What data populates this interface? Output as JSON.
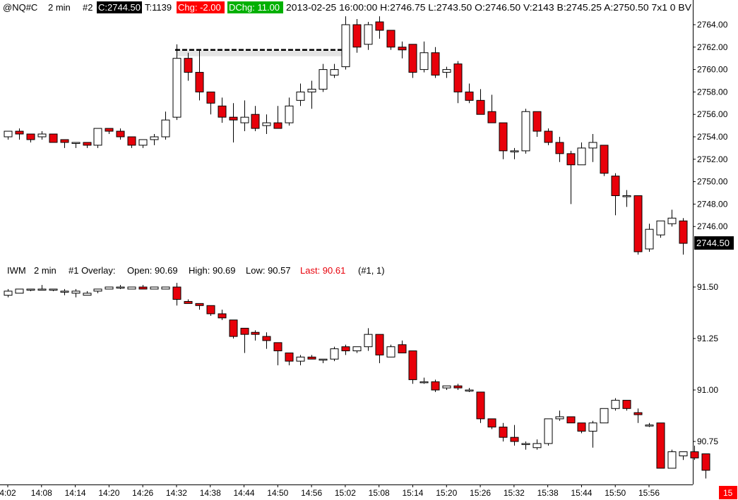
{
  "header": {
    "symbol": "@NQ#C",
    "interval": "2 min",
    "study_num": "#2",
    "close_label": "C:2744.50",
    "ticks_label": "T:1139",
    "chg_label": "Chg: -2.00",
    "dchg_label": "DChg: 11.00",
    "info": "2013-02-25 16:00:00 H:2746.75 L:2743.50 O:2746.50 V:2143 B:2745.25 A:2750.50 7x1 0 BV"
  },
  "overlay_header": {
    "symbol": "IWM",
    "interval": "2 min",
    "overlay_label": "#1 Overlay:",
    "open_label": "Open: 90.69",
    "high_label": "High: 90.69",
    "low_label": "Low: 90.57",
    "last_label": "Last: 90.61",
    "suffix": "(#1, 1)"
  },
  "colors": {
    "up": "#ffffff",
    "down": "#e8000a",
    "chg_bg": "#ff0000",
    "dchg_bg": "#00b000",
    "close_bg": "#000000",
    "last_text": "#e8000a"
  },
  "price_badge": "2744.50",
  "corner_badge": "15",
  "chart_data": [
    {
      "type": "candlestick",
      "name": "@NQ#C",
      "x_ticks": [
        "4:02",
        "14:08",
        "14:14",
        "14:20",
        "14:26",
        "14:32",
        "14:38",
        "14:44",
        "14:50",
        "14:56",
        "15:02",
        "15:08",
        "15:14",
        "15:20",
        "15:26",
        "15:32",
        "15:38",
        "15:44",
        "15:50",
        "15:56"
      ],
      "y_ticks": [
        "2764.00",
        "2762.00",
        "2760.00",
        "2758.00",
        "2756.00",
        "2754.00",
        "2752.00",
        "2750.00",
        "2748.00",
        "2746.00"
      ],
      "ylim": [
        2743.0,
        2765.0
      ],
      "reference_line": 2761.75,
      "last_price": 2744.5,
      "ohlc": [
        [
          2754.0,
          2754.5,
          2753.75,
          2754.5
        ],
        [
          2754.5,
          2754.75,
          2753.75,
          2754.25
        ],
        [
          2754.25,
          2754.25,
          2753.5,
          2753.75
        ],
        [
          2754.0,
          2754.5,
          2753.75,
          2754.25
        ],
        [
          2754.25,
          2754.25,
          2753.5,
          2753.5
        ],
        [
          2753.75,
          2753.75,
          2753.0,
          2753.5
        ],
        [
          2753.5,
          2753.5,
          2753.0,
          2753.5
        ],
        [
          2753.5,
          2753.5,
          2753.0,
          2753.25
        ],
        [
          2753.25,
          2754.75,
          2753.0,
          2754.75
        ],
        [
          2754.75,
          2754.75,
          2754.25,
          2754.5
        ],
        [
          2754.5,
          2754.75,
          2753.75,
          2754.0
        ],
        [
          2754.0,
          2754.0,
          2753.0,
          2753.25
        ],
        [
          2753.25,
          2753.75,
          2753.0,
          2753.75
        ],
        [
          2753.75,
          2754.25,
          2753.25,
          2754.0
        ],
        [
          2754.0,
          2756.25,
          2753.75,
          2755.5
        ],
        [
          2755.75,
          2762.25,
          2755.5,
          2761.0
        ],
        [
          2761.0,
          2761.5,
          2759.0,
          2759.75
        ],
        [
          2759.75,
          2761.75,
          2757.25,
          2758.0
        ],
        [
          2758.0,
          2758.0,
          2756.0,
          2757.0
        ],
        [
          2756.75,
          2757.5,
          2755.25,
          2755.75
        ],
        [
          2755.75,
          2757.0,
          2753.5,
          2755.5
        ],
        [
          2755.25,
          2757.25,
          2754.5,
          2755.75
        ],
        [
          2756.0,
          2756.75,
          2754.5,
          2754.75
        ],
        [
          2755.0,
          2756.0,
          2754.25,
          2755.25
        ],
        [
          2755.25,
          2756.75,
          2754.75,
          2754.75
        ],
        [
          2755.25,
          2757.5,
          2755.0,
          2756.75
        ],
        [
          2757.25,
          2758.75,
          2756.75,
          2758.0
        ],
        [
          2758.0,
          2759.0,
          2756.5,
          2758.25
        ],
        [
          2758.25,
          2760.5,
          2758.0,
          2760.0
        ],
        [
          2759.5,
          2760.5,
          2759.25,
          2760.0
        ],
        [
          2760.25,
          2764.75,
          2760.0,
          2764.0
        ],
        [
          2764.0,
          2764.5,
          2761.5,
          2762.0
        ],
        [
          2762.25,
          2764.25,
          2761.75,
          2764.0
        ],
        [
          2764.25,
          2764.75,
          2762.75,
          2763.5
        ],
        [
          2763.5,
          2763.5,
          2761.75,
          2762.0
        ],
        [
          2762.0,
          2762.5,
          2761.0,
          2761.75
        ],
        [
          2762.25,
          2762.25,
          2759.25,
          2759.75
        ],
        [
          2760.0,
          2762.5,
          2759.75,
          2761.5
        ],
        [
          2761.5,
          2762.0,
          2759.25,
          2759.5
        ],
        [
          2759.75,
          2760.25,
          2759.25,
          2760.0
        ],
        [
          2760.5,
          2760.75,
          2757.0,
          2758.0
        ],
        [
          2758.0,
          2758.75,
          2757.0,
          2757.25
        ],
        [
          2757.25,
          2758.25,
          2756.0,
          2756.0
        ],
        [
          2756.25,
          2757.75,
          2755.25,
          2755.25
        ],
        [
          2755.25,
          2755.25,
          2752.0,
          2752.75
        ],
        [
          2752.75,
          2753.0,
          2752.0,
          2752.75
        ],
        [
          2752.75,
          2756.5,
          2752.5,
          2756.25
        ],
        [
          2756.25,
          2756.25,
          2754.0,
          2754.5
        ],
        [
          2754.5,
          2754.75,
          2753.25,
          2753.5
        ],
        [
          2753.5,
          2754.0,
          2751.75,
          2752.5
        ],
        [
          2752.5,
          2752.75,
          2748.0,
          2751.5
        ],
        [
          2751.5,
          2753.5,
          2751.5,
          2753.0
        ],
        [
          2753.0,
          2754.25,
          2751.75,
          2753.5
        ],
        [
          2753.25,
          2753.25,
          2750.5,
          2750.75
        ],
        [
          2750.5,
          2750.75,
          2747.0,
          2748.75
        ],
        [
          2748.75,
          2749.25,
          2747.75,
          2748.75
        ],
        [
          2748.75,
          2748.75,
          2743.5,
          2743.75
        ],
        [
          2744.0,
          2746.25,
          2743.75,
          2745.75
        ],
        [
          2745.25,
          2746.5,
          2745.0,
          2746.5
        ],
        [
          2746.25,
          2747.5,
          2746.0,
          2746.75
        ],
        [
          2746.5,
          2746.75,
          2743.5,
          2744.5
        ]
      ]
    },
    {
      "type": "candlestick",
      "name": "IWM",
      "y_ticks": [
        "91.50",
        "91.25",
        "91.00",
        "90.75"
      ],
      "ylim": [
        90.56,
        91.55
      ],
      "ohlc": [
        [
          91.46,
          91.49,
          91.45,
          91.48
        ],
        [
          91.47,
          91.49,
          91.47,
          91.49
        ],
        [
          91.49,
          91.49,
          91.48,
          91.49
        ],
        [
          91.49,
          91.51,
          91.49,
          91.49
        ],
        [
          91.49,
          91.49,
          91.48,
          91.49
        ],
        [
          91.48,
          91.49,
          91.46,
          91.48
        ],
        [
          91.47,
          91.49,
          91.45,
          91.48
        ],
        [
          91.46,
          91.48,
          91.46,
          91.47
        ],
        [
          91.48,
          91.49,
          91.47,
          91.49
        ],
        [
          91.49,
          91.5,
          91.49,
          91.5
        ],
        [
          91.5,
          91.51,
          91.49,
          91.5
        ],
        [
          91.49,
          91.5,
          91.49,
          91.5
        ],
        [
          91.5,
          91.51,
          91.49,
          91.49
        ],
        [
          91.49,
          91.5,
          91.49,
          91.5
        ],
        [
          91.49,
          91.5,
          91.49,
          91.5
        ],
        [
          91.5,
          91.52,
          91.41,
          91.44
        ],
        [
          91.43,
          91.44,
          91.42,
          91.42
        ],
        [
          91.42,
          91.42,
          91.39,
          91.41
        ],
        [
          91.41,
          91.41,
          91.36,
          91.37
        ],
        [
          91.37,
          91.39,
          91.34,
          91.35
        ],
        [
          91.34,
          91.34,
          91.25,
          91.26
        ],
        [
          91.3,
          91.3,
          91.18,
          91.27
        ],
        [
          91.28,
          91.29,
          91.24,
          91.27
        ],
        [
          91.26,
          91.28,
          91.2,
          91.24
        ],
        [
          91.23,
          91.23,
          91.12,
          91.19
        ],
        [
          91.18,
          91.18,
          91.12,
          91.14
        ],
        [
          91.14,
          91.17,
          91.12,
          91.16
        ],
        [
          91.16,
          91.17,
          91.15,
          91.15
        ],
        [
          91.15,
          91.15,
          91.13,
          91.15
        ],
        [
          91.15,
          91.21,
          91.14,
          91.2
        ],
        [
          91.21,
          91.22,
          91.17,
          91.19
        ],
        [
          91.19,
          91.21,
          91.18,
          91.21
        ],
        [
          91.21,
          91.3,
          91.19,
          91.27
        ],
        [
          91.27,
          91.27,
          91.13,
          91.17
        ],
        [
          91.16,
          91.22,
          91.16,
          91.21
        ],
        [
          91.22,
          91.24,
          91.18,
          91.18
        ],
        [
          91.19,
          91.19,
          91.03,
          91.05
        ],
        [
          91.04,
          91.06,
          91.03,
          91.04
        ],
        [
          91.04,
          91.05,
          90.99,
          91.0
        ],
        [
          91.01,
          91.02,
          91.0,
          91.02
        ],
        [
          91.02,
          91.03,
          91.0,
          91.01
        ],
        [
          91.0,
          91.01,
          90.99,
          91.0
        ],
        [
          90.99,
          90.99,
          90.84,
          90.86
        ],
        [
          90.86,
          90.86,
          90.81,
          90.82
        ],
        [
          90.82,
          90.84,
          90.75,
          90.77
        ],
        [
          90.77,
          90.83,
          90.73,
          90.75
        ],
        [
          90.74,
          90.75,
          90.71,
          90.74
        ],
        [
          90.72,
          90.76,
          90.71,
          90.74
        ],
        [
          90.74,
          90.86,
          90.73,
          90.86
        ],
        [
          90.86,
          90.9,
          90.85,
          90.87
        ],
        [
          90.87,
          90.87,
          90.84,
          90.84
        ],
        [
          90.84,
          90.84,
          90.79,
          90.8
        ],
        [
          90.8,
          90.85,
          90.72,
          90.84
        ],
        [
          90.84,
          90.91,
          90.84,
          90.91
        ],
        [
          90.91,
          90.96,
          90.9,
          90.95
        ],
        [
          90.95,
          90.95,
          90.9,
          90.91
        ],
        [
          90.89,
          90.91,
          90.84,
          90.88
        ],
        [
          90.83,
          90.84,
          90.82,
          90.83
        ],
        [
          90.84,
          90.84,
          90.62,
          90.62
        ],
        [
          90.62,
          90.71,
          90.62,
          90.7
        ],
        [
          90.68,
          90.7,
          90.66,
          90.7
        ],
        [
          90.7,
          90.73,
          90.66,
          90.67
        ],
        [
          90.69,
          90.69,
          90.57,
          90.61
        ]
      ]
    }
  ]
}
